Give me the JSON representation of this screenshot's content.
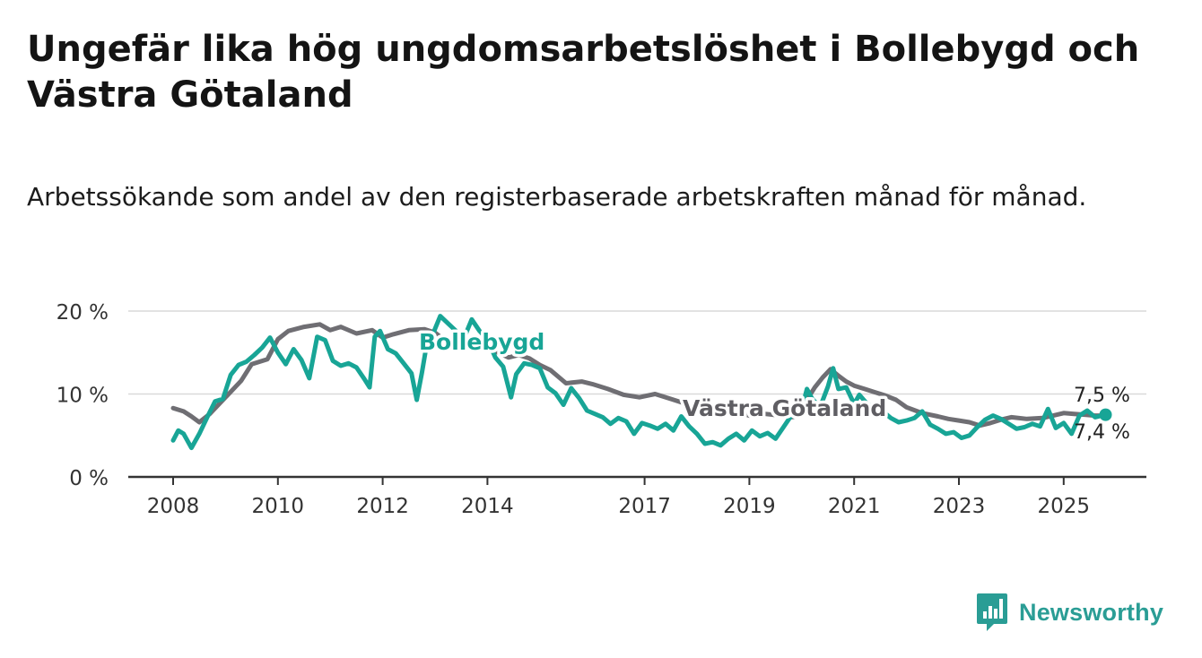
{
  "header": {
    "title": "Ungefär lika hög ungdomsarbetslöshet i Bollebygd och Västra Götaland",
    "subtitle": "Arbetssökande som andel av den registerbaserade arbetskraften månad för månad."
  },
  "brand": {
    "name": "Newsworthy",
    "color": "#2a9d95",
    "icon": "newsworthy-logo-icon"
  },
  "colors": {
    "bollebygd": "#18a596",
    "vastra": "#6f6e73",
    "grid": "#d9d9d9",
    "axis": "#333333"
  },
  "chart_data": {
    "type": "line",
    "title": "Ungefär lika hög ungdomsarbetslöshet i Bollebygd och Västra Götaland",
    "xlabel": "",
    "ylabel": "",
    "xlim": [
      2007.7,
      2026.5
    ],
    "ylim": [
      0,
      20
    ],
    "y_ticks": [
      0,
      10,
      20
    ],
    "y_tick_labels": [
      "0 %",
      "10 %",
      "20 %"
    ],
    "x_ticks": [
      2008,
      2010,
      2012,
      2014,
      2017,
      2019,
      2021,
      2023,
      2025
    ],
    "x_tick_labels": [
      "2008",
      "2010",
      "2012",
      "2014",
      "2017",
      "2019",
      "2021",
      "2023",
      "2025"
    ],
    "grid": true,
    "series": [
      {
        "name": "Västra Götaland",
        "color": "#6f6e73",
        "label": "Västra Götaland",
        "end_label": "7,4 %",
        "points": [
          [
            2008.0,
            8.3
          ],
          [
            2008.2,
            7.9
          ],
          [
            2008.35,
            7.3
          ],
          [
            2008.5,
            6.6
          ],
          [
            2008.7,
            7.6
          ],
          [
            2009.0,
            9.6
          ],
          [
            2009.3,
            11.6
          ],
          [
            2009.5,
            13.6
          ],
          [
            2009.8,
            14.2
          ],
          [
            2010.0,
            16.6
          ],
          [
            2010.2,
            17.6
          ],
          [
            2010.5,
            18.1
          ],
          [
            2010.8,
            18.4
          ],
          [
            2011.0,
            17.7
          ],
          [
            2011.2,
            18.1
          ],
          [
            2011.5,
            17.3
          ],
          [
            2011.8,
            17.7
          ],
          [
            2012.0,
            16.8
          ],
          [
            2012.2,
            17.2
          ],
          [
            2012.5,
            17.7
          ],
          [
            2012.8,
            17.8
          ],
          [
            2013.0,
            17.4
          ],
          [
            2013.2,
            16.4
          ],
          [
            2013.5,
            15.3
          ],
          [
            2013.8,
            16.3
          ],
          [
            2014.0,
            15.6
          ],
          [
            2014.2,
            15.0
          ],
          [
            2014.4,
            14.4
          ],
          [
            2014.6,
            14.7
          ],
          [
            2014.8,
            14.3
          ],
          [
            2015.0,
            13.5
          ],
          [
            2015.2,
            12.9
          ],
          [
            2015.5,
            11.3
          ],
          [
            2015.8,
            11.5
          ],
          [
            2016.0,
            11.2
          ],
          [
            2016.3,
            10.6
          ],
          [
            2016.6,
            9.9
          ],
          [
            2016.9,
            9.6
          ],
          [
            2017.2,
            10.0
          ],
          [
            2017.5,
            9.4
          ],
          [
            2017.8,
            8.8
          ],
          [
            2018.1,
            8.4
          ],
          [
            2018.4,
            8.1
          ],
          [
            2018.7,
            7.9
          ],
          [
            2019.0,
            7.4
          ],
          [
            2019.3,
            7.6
          ],
          [
            2019.6,
            7.4
          ],
          [
            2019.8,
            7.2
          ],
          [
            2020.0,
            7.4
          ],
          [
            2020.1,
            9.3
          ],
          [
            2020.25,
            10.8
          ],
          [
            2020.4,
            12.0
          ],
          [
            2020.55,
            13.0
          ],
          [
            2020.7,
            12.2
          ],
          [
            2020.85,
            11.5
          ],
          [
            2021.0,
            11.0
          ],
          [
            2021.2,
            10.6
          ],
          [
            2021.4,
            10.2
          ],
          [
            2021.6,
            9.8
          ],
          [
            2021.8,
            9.3
          ],
          [
            2022.0,
            8.4
          ],
          [
            2022.3,
            7.7
          ],
          [
            2022.6,
            7.3
          ],
          [
            2022.8,
            7.0
          ],
          [
            2023.0,
            6.8
          ],
          [
            2023.2,
            6.6
          ],
          [
            2023.4,
            6.2
          ],
          [
            2023.6,
            6.5
          ],
          [
            2023.8,
            6.9
          ],
          [
            2024.0,
            7.2
          ],
          [
            2024.3,
            7.0
          ],
          [
            2024.6,
            7.1
          ],
          [
            2024.8,
            7.4
          ],
          [
            2025.0,
            7.7
          ],
          [
            2025.2,
            7.6
          ],
          [
            2025.4,
            7.5
          ],
          [
            2025.6,
            7.4
          ],
          [
            2025.8,
            7.4
          ]
        ]
      },
      {
        "name": "Bollebygd",
        "color": "#18a596",
        "label": "Bollebygd",
        "end_label": "7,5 %",
        "points": [
          [
            2008.0,
            4.4
          ],
          [
            2008.1,
            5.6
          ],
          [
            2008.2,
            5.2
          ],
          [
            2008.35,
            3.5
          ],
          [
            2008.5,
            5.2
          ],
          [
            2008.65,
            7.2
          ],
          [
            2008.8,
            9.1
          ],
          [
            2008.95,
            9.4
          ],
          [
            2009.1,
            12.3
          ],
          [
            2009.25,
            13.5
          ],
          [
            2009.4,
            13.9
          ],
          [
            2009.55,
            14.7
          ],
          [
            2009.7,
            15.6
          ],
          [
            2009.85,
            16.8
          ],
          [
            2010.0,
            15.0
          ],
          [
            2010.15,
            13.6
          ],
          [
            2010.3,
            15.4
          ],
          [
            2010.45,
            14.1
          ],
          [
            2010.6,
            11.9
          ],
          [
            2010.75,
            16.9
          ],
          [
            2010.9,
            16.5
          ],
          [
            2011.05,
            14.0
          ],
          [
            2011.2,
            13.4
          ],
          [
            2011.35,
            13.7
          ],
          [
            2011.5,
            13.2
          ],
          [
            2011.65,
            11.8
          ],
          [
            2011.75,
            10.8
          ],
          [
            2011.85,
            16.9
          ],
          [
            2011.95,
            17.6
          ],
          [
            2012.1,
            15.4
          ],
          [
            2012.25,
            14.9
          ],
          [
            2012.4,
            13.7
          ],
          [
            2012.55,
            12.5
          ],
          [
            2012.65,
            9.3
          ],
          [
            2012.75,
            12.6
          ],
          [
            2012.85,
            16.3
          ],
          [
            2012.95,
            17.1
          ],
          [
            2013.1,
            19.4
          ],
          [
            2013.25,
            18.5
          ],
          [
            2013.4,
            17.6
          ],
          [
            2013.55,
            16.7
          ],
          [
            2013.7,
            19.0
          ],
          [
            2013.85,
            17.6
          ],
          [
            2014.0,
            16.6
          ],
          [
            2014.15,
            14.4
          ],
          [
            2014.3,
            13.3
          ],
          [
            2014.45,
            9.6
          ],
          [
            2014.55,
            12.4
          ],
          [
            2014.7,
            13.7
          ],
          [
            2014.85,
            13.5
          ],
          [
            2015.0,
            13.1
          ],
          [
            2015.15,
            10.8
          ],
          [
            2015.3,
            10.1
          ],
          [
            2015.45,
            8.7
          ],
          [
            2015.6,
            10.7
          ],
          [
            2015.75,
            9.5
          ],
          [
            2015.9,
            8.0
          ],
          [
            2016.05,
            7.6
          ],
          [
            2016.2,
            7.2
          ],
          [
            2016.35,
            6.4
          ],
          [
            2016.5,
            7.1
          ],
          [
            2016.65,
            6.7
          ],
          [
            2016.8,
            5.2
          ],
          [
            2016.95,
            6.5
          ],
          [
            2017.1,
            6.2
          ],
          [
            2017.25,
            5.8
          ],
          [
            2017.4,
            6.4
          ],
          [
            2017.55,
            5.6
          ],
          [
            2017.7,
            7.3
          ],
          [
            2017.85,
            6.1
          ],
          [
            2018.0,
            5.2
          ],
          [
            2018.15,
            4.0
          ],
          [
            2018.3,
            4.2
          ],
          [
            2018.45,
            3.8
          ],
          [
            2018.6,
            4.6
          ],
          [
            2018.75,
            5.2
          ],
          [
            2018.9,
            4.4
          ],
          [
            2019.05,
            5.6
          ],
          [
            2019.2,
            4.9
          ],
          [
            2019.35,
            5.3
          ],
          [
            2019.5,
            4.6
          ],
          [
            2019.65,
            6.0
          ],
          [
            2019.8,
            7.4
          ],
          [
            2020.0,
            8.2
          ],
          [
            2020.1,
            10.6
          ],
          [
            2020.2,
            9.4
          ],
          [
            2020.35,
            8.4
          ],
          [
            2020.5,
            10.9
          ],
          [
            2020.6,
            13.1
          ],
          [
            2020.7,
            10.6
          ],
          [
            2020.85,
            10.8
          ],
          [
            2021.0,
            8.8
          ],
          [
            2021.1,
            9.9
          ],
          [
            2021.25,
            8.8
          ],
          [
            2021.4,
            8.2
          ],
          [
            2021.55,
            7.9
          ],
          [
            2021.7,
            7.1
          ],
          [
            2021.85,
            6.6
          ],
          [
            2022.0,
            6.8
          ],
          [
            2022.15,
            7.1
          ],
          [
            2022.3,
            7.9
          ],
          [
            2022.45,
            6.3
          ],
          [
            2022.6,
            5.8
          ],
          [
            2022.75,
            5.2
          ],
          [
            2022.9,
            5.4
          ],
          [
            2023.05,
            4.7
          ],
          [
            2023.2,
            5.0
          ],
          [
            2023.35,
            6.0
          ],
          [
            2023.5,
            6.9
          ],
          [
            2023.65,
            7.4
          ],
          [
            2023.8,
            7.0
          ],
          [
            2023.95,
            6.4
          ],
          [
            2024.1,
            5.8
          ],
          [
            2024.25,
            6.0
          ],
          [
            2024.4,
            6.4
          ],
          [
            2024.55,
            6.1
          ],
          [
            2024.7,
            8.2
          ],
          [
            2024.85,
            5.9
          ],
          [
            2025.0,
            6.5
          ],
          [
            2025.15,
            5.2
          ],
          [
            2025.3,
            7.4
          ],
          [
            2025.45,
            8.0
          ],
          [
            2025.6,
            7.2
          ],
          [
            2025.8,
            7.5
          ]
        ]
      }
    ]
  }
}
